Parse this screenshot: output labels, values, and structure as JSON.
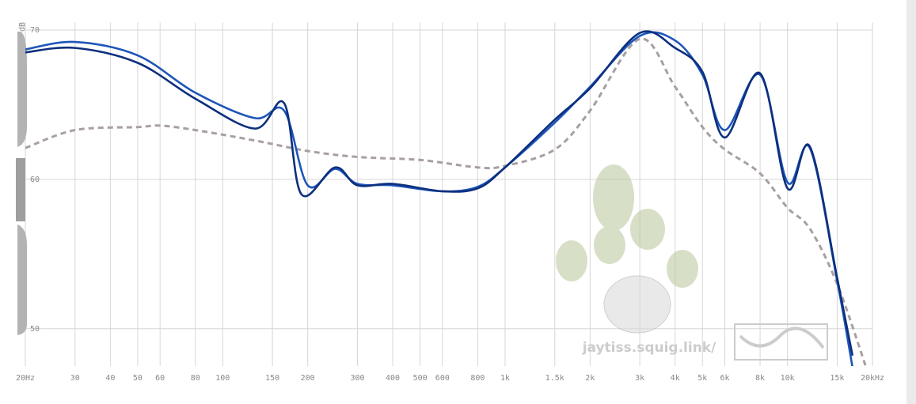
{
  "chart_data": {
    "type": "line",
    "x_scale": "log",
    "grid": true,
    "y_label": "dB",
    "watermark": "jaytiss.squig.link/",
    "xlim": [
      20,
      20000
    ],
    "ylim": [
      47.5,
      70.5
    ],
    "xticks": [
      {
        "value": 20,
        "label": "20Hz"
      },
      30,
      40,
      50,
      60,
      80,
      100,
      150,
      200,
      300,
      400,
      500,
      600,
      800,
      {
        "value": 1000,
        "label": "1k"
      },
      {
        "value": 1500,
        "label": "1.5k"
      },
      {
        "value": 2000,
        "label": "2k"
      },
      {
        "value": 3000,
        "label": "3k"
      },
      {
        "value": 4000,
        "label": "4k"
      },
      {
        "value": 5000,
        "label": "5k"
      },
      {
        "value": 6000,
        "label": "6k"
      },
      {
        "value": 8000,
        "label": "8k"
      },
      {
        "value": 10000,
        "label": "10k"
      },
      {
        "value": 15000,
        "label": "15k"
      },
      {
        "value": 20000,
        "label": "20kHz"
      }
    ],
    "yticks": [
      50,
      60,
      70
    ],
    "series": [
      {
        "color": "#1d56b8",
        "dash": false,
        "x": [
          20,
          30,
          50,
          80,
          130,
          165,
          200,
          250,
          300,
          400,
          600,
          800,
          1000,
          1500,
          2000,
          3000,
          4000,
          5000,
          6000,
          8000,
          10000,
          12000,
          15000,
          17000
        ],
        "values": [
          68.7,
          69.2,
          68.3,
          65.8,
          64.1,
          64.6,
          59.6,
          60.7,
          59.7,
          59.6,
          59.2,
          59.5,
          60.8,
          63.8,
          66.2,
          69.6,
          69.3,
          67.0,
          63.3,
          67.0,
          59.8,
          62.1,
          53.2,
          47.4
        ]
      },
      {
        "color": "#0d2f7e",
        "dash": false,
        "x": [
          20,
          30,
          50,
          80,
          130,
          165,
          190,
          250,
          300,
          400,
          600,
          800,
          1000,
          1500,
          2000,
          3000,
          4000,
          5000,
          6000,
          8000,
          10000,
          12000,
          15000,
          17000
        ],
        "values": [
          68.5,
          68.8,
          67.8,
          65.4,
          63.4,
          65.1,
          59.0,
          60.8,
          59.6,
          59.7,
          59.2,
          59.4,
          60.8,
          64.0,
          66.1,
          69.8,
          68.8,
          67.2,
          62.8,
          67.1,
          59.4,
          62.2,
          53.4,
          48.2
        ]
      },
      {
        "color": "#a89fa2",
        "dash": true,
        "x": [
          20,
          30,
          50,
          60,
          80,
          130,
          200,
          300,
          500,
          800,
          1000,
          1500,
          2000,
          3000,
          4000,
          5000,
          6000,
          8000,
          10000,
          12000,
          15000,
          19000
        ],
        "values": [
          62.1,
          63.3,
          63.5,
          63.6,
          63.3,
          62.6,
          61.9,
          61.5,
          61.3,
          60.8,
          60.9,
          62.0,
          64.6,
          69.4,
          66.2,
          63.5,
          62.0,
          60.4,
          58.1,
          56.7,
          53.0,
          47.4
        ]
      }
    ]
  }
}
